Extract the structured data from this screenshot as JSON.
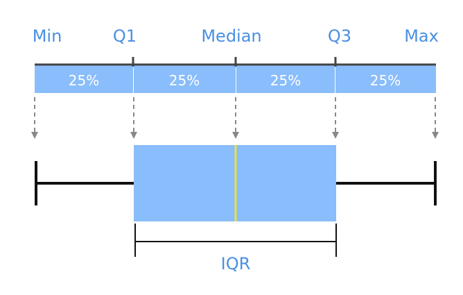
{
  "top_labels": {
    "min": "Min",
    "q1": "Q1",
    "median": "Median",
    "q3": "Q3",
    "max": "Max"
  },
  "segments": [
    "25%",
    "25%",
    "25%",
    "25%"
  ],
  "iqr_label": "IQR",
  "colors": {
    "accent_text": "#4a8fe2",
    "segment_fill": "#89bdfb",
    "box_fill": "#89bdfb",
    "median_line": "#f0e040",
    "arrow": "#888888",
    "line": "#111111"
  }
}
